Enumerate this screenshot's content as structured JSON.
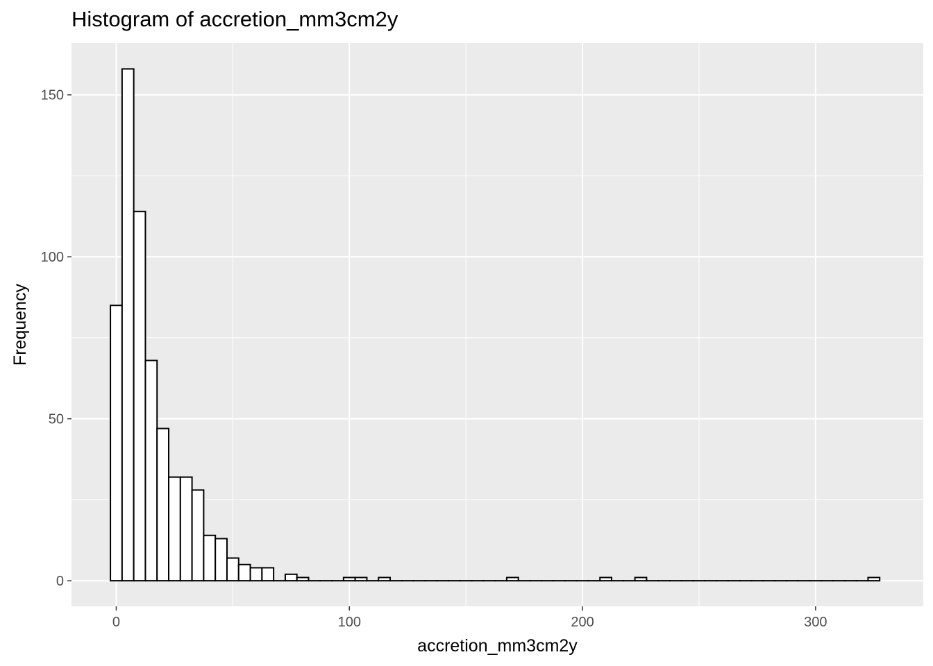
{
  "chart_data": {
    "type": "bar",
    "title": "Histogram of accretion_mm3cm2y",
    "xlabel": "accretion_mm3cm2y",
    "ylabel": "Frequency",
    "xlim": [
      -19.2,
      346.2
    ],
    "ylim": [
      -7.9,
      166
    ],
    "x_ticks": [
      0,
      100,
      200,
      300
    ],
    "y_ticks": [
      0,
      50,
      100,
      150
    ],
    "grid": true,
    "bin_width": 5,
    "bins": [
      {
        "x0": -2.5,
        "x1": 2.5,
        "count": 85
      },
      {
        "x0": 2.5,
        "x1": 7.5,
        "count": 158
      },
      {
        "x0": 7.5,
        "x1": 12.5,
        "count": 114
      },
      {
        "x0": 12.5,
        "x1": 17.5,
        "count": 68
      },
      {
        "x0": 17.5,
        "x1": 22.5,
        "count": 47
      },
      {
        "x0": 22.5,
        "x1": 27.5,
        "count": 32
      },
      {
        "x0": 27.5,
        "x1": 32.5,
        "count": 32
      },
      {
        "x0": 32.5,
        "x1": 37.5,
        "count": 28
      },
      {
        "x0": 37.5,
        "x1": 42.5,
        "count": 14
      },
      {
        "x0": 42.5,
        "x1": 47.5,
        "count": 13
      },
      {
        "x0": 47.5,
        "x1": 52.5,
        "count": 7
      },
      {
        "x0": 52.5,
        "x1": 57.5,
        "count": 5
      },
      {
        "x0": 57.5,
        "x1": 62.5,
        "count": 4
      },
      {
        "x0": 62.5,
        "x1": 67.5,
        "count": 4
      },
      {
        "x0": 67.5,
        "x1": 72.5,
        "count": 0
      },
      {
        "x0": 72.5,
        "x1": 77.5,
        "count": 2
      },
      {
        "x0": 77.5,
        "x1": 82.5,
        "count": 1
      },
      {
        "x0": 97.5,
        "x1": 102.5,
        "count": 1
      },
      {
        "x0": 102.5,
        "x1": 107.5,
        "count": 1
      },
      {
        "x0": 112.5,
        "x1": 117.5,
        "count": 1
      },
      {
        "x0": 167.5,
        "x1": 172.5,
        "count": 1
      },
      {
        "x0": 207.5,
        "x1": 212.5,
        "count": 1
      },
      {
        "x0": 222.5,
        "x1": 227.5,
        "count": 1
      },
      {
        "x0": 322.5,
        "x1": 327.5,
        "count": 1
      }
    ],
    "range": [
      -2.5,
      327.5
    ]
  },
  "colors": {
    "panel_background": "#ebebeb",
    "grid_major": "#ffffff",
    "bar_fill": "#ffffff",
    "bar_outline": "#000000",
    "tick_text": "#4d4d4d",
    "tick_mark": "#333333"
  }
}
